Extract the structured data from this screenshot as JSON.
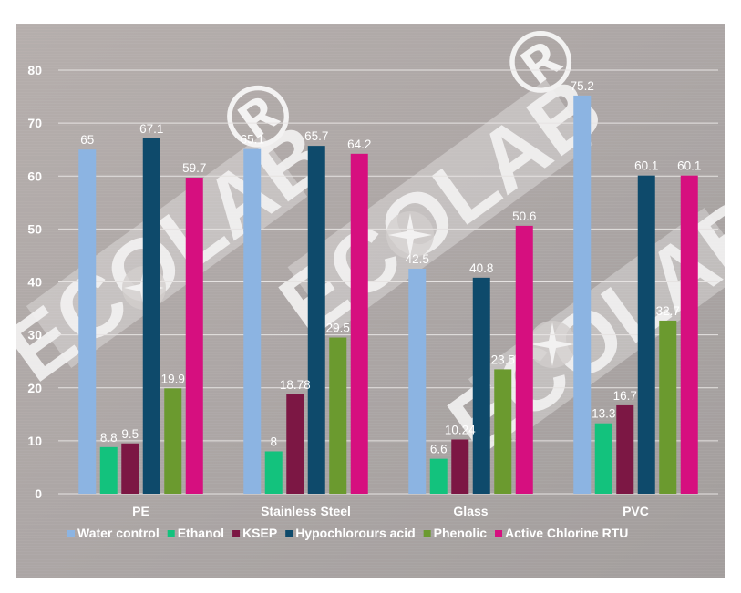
{
  "chart_data": {
    "type": "bar",
    "categories": [
      "PE",
      "Stainless Steel",
      "Glass",
      "PVC"
    ],
    "series": [
      {
        "name": "Water control",
        "color": "#8cb4e2",
        "values": [
          65,
          65.1,
          42.5,
          75.2
        ],
        "labels": [
          "65",
          "65.1",
          "42.5",
          "75.2"
        ]
      },
      {
        "name": "Ethanol",
        "color": "#13c27d",
        "values": [
          8.8,
          8,
          6.6,
          13.3
        ],
        "labels": [
          "8.8",
          "8",
          "6.6",
          "13.3"
        ]
      },
      {
        "name": "KSEP",
        "color": "#7c1744",
        "values": [
          9.5,
          18.78,
          10.24,
          16.7
        ],
        "labels": [
          "9.5",
          "18.78",
          "10.24",
          "16.7"
        ]
      },
      {
        "name": "Hypochlorours acid",
        "color": "#0e4a6b",
        "values": [
          67.1,
          65.7,
          40.8,
          60.1
        ],
        "labels": [
          "67.1",
          "65.7",
          "40.8",
          "60.1"
        ]
      },
      {
        "name": "Phenolic",
        "color": "#6b9a2f",
        "values": [
          19.9,
          29.5,
          23.5,
          32.7
        ],
        "labels": [
          "19.9",
          "29.5",
          "23.5",
          "32.7"
        ]
      },
      {
        "name": "Active Chlorine RTU",
        "color": "#d60f7f",
        "values": [
          59.7,
          64.2,
          50.6,
          60.1
        ],
        "labels": [
          "59.7",
          "64.2",
          "50.6",
          "60.1"
        ]
      }
    ],
    "yticks": [
      "0",
      "10",
      "20",
      "30",
      "40",
      "50",
      "60",
      "70",
      "80"
    ],
    "ylim": [
      0,
      80
    ],
    "grid": true,
    "legend_position": "bottom",
    "title": "",
    "xlabel": "",
    "ylabel": ""
  },
  "watermark": {
    "text": "ECOLAB",
    "mark": "®",
    "icon": "compass-star-icon"
  },
  "colors": {
    "background_top": "#b3acab",
    "background_bottom": "#a8a3a2",
    "grid": "#e6e3e2",
    "text": "#ffffff"
  }
}
